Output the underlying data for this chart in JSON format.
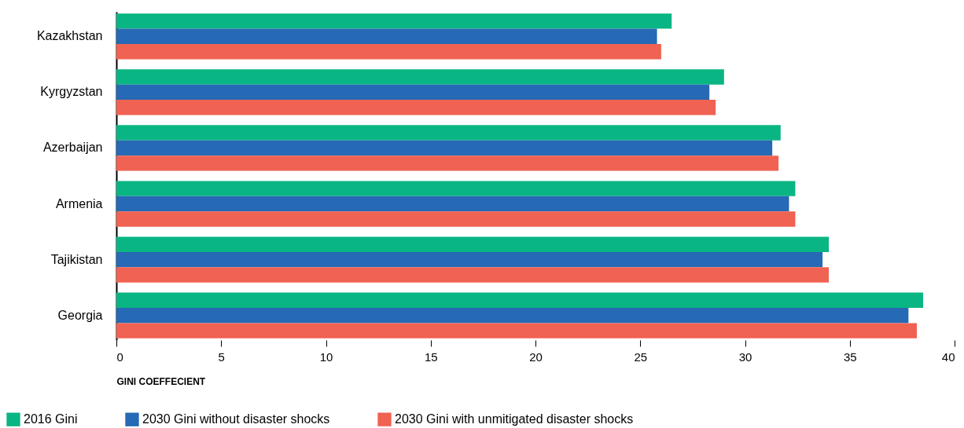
{
  "chart_data": {
    "type": "bar",
    "orientation": "horizontal",
    "xlabel": "GINI COEFFECIENT",
    "categories": [
      "Kazakhstan",
      "Kyrgyzstan",
      "Azerbaijan",
      "Armenia",
      "Tajikistan",
      "Georgia"
    ],
    "series": [
      {
        "name": "2016 Gini",
        "color": "#0ab584",
        "values": [
          26.5,
          29.0,
          31.7,
          32.4,
          34.0,
          38.5
        ]
      },
      {
        "name": "2030 Gini without disaster shocks",
        "color": "#2669b5",
        "values": [
          25.8,
          28.3,
          31.3,
          32.1,
          33.7,
          37.8
        ]
      },
      {
        "name": "2030 Gini with unmitigated disaster shocks",
        "color": "#f06252",
        "values": [
          26.0,
          28.6,
          31.6,
          32.4,
          34.0,
          38.2
        ]
      }
    ],
    "xlim": [
      0,
      40
    ],
    "xticks": [
      0,
      5,
      10,
      15,
      20,
      25,
      30,
      35,
      40
    ],
    "grid": false,
    "legend": "bottom"
  }
}
